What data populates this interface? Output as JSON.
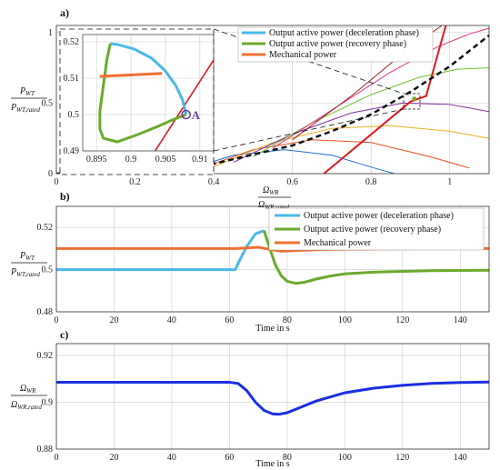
{
  "colors": {
    "decel": "#4ab8e8",
    "recovery": "#6aaa2a",
    "mech": "#f07030",
    "speed": "#1a2ee0",
    "red": "#e01818",
    "grid": "#cccccc"
  },
  "chart_data": [
    {
      "type": "line",
      "panel_label": "a)",
      "ylabel_main": "P",
      "ylabel_main_sub": "WT",
      "ylabel_den": "P",
      "ylabel_den_sub": "WT,rated",
      "xlabel_main": "Ω",
      "xlabel_main_sub": "WR",
      "xlabel_den": "Ω",
      "xlabel_den_sub": "WR,rated",
      "xlim": [
        0,
        1.1
      ],
      "ylim": [
        0,
        1.05
      ],
      "xticks": [
        "0",
        "0.2",
        "0.4",
        "0.6",
        "0.8",
        "1"
      ],
      "yticks": [
        "0",
        "0.5",
        "1"
      ],
      "legend": [
        "Output active power (deceleration phase)",
        "Output active power (recovery phase)",
        "Mechanical power"
      ],
      "inset": {
        "xlim": [
          0.893,
          0.912
        ],
        "ylim": [
          0.49,
          0.522
        ],
        "xticks": [
          "0.895",
          "0.9",
          "0.905",
          "0.91"
        ],
        "yticks": [
          "0.49",
          "0.5",
          "0.51",
          "0.52"
        ],
        "point_label": "A",
        "decel": [
          [
            0.908,
            0.5
          ],
          [
            0.9075,
            0.504
          ],
          [
            0.9065,
            0.508
          ],
          [
            0.905,
            0.512
          ],
          [
            0.903,
            0.5155
          ],
          [
            0.9005,
            0.518
          ],
          [
            0.898,
            0.5193
          ],
          [
            0.897,
            0.5195
          ]
        ],
        "recovery": [
          [
            0.897,
            0.5195
          ],
          [
            0.8965,
            0.515
          ],
          [
            0.896,
            0.508
          ],
          [
            0.8955,
            0.501
          ],
          [
            0.8955,
            0.496
          ],
          [
            0.896,
            0.4935
          ],
          [
            0.898,
            0.4925
          ],
          [
            0.901,
            0.4945
          ],
          [
            0.904,
            0.4968
          ],
          [
            0.906,
            0.4985
          ],
          [
            0.908,
            0.5
          ]
        ],
        "mech": [
          [
            0.8955,
            0.5105
          ],
          [
            0.9045,
            0.5113
          ]
        ],
        "red": [
          [
            0.9035,
            0.49
          ],
          [
            0.912,
            0.515
          ]
        ]
      },
      "power_curves": [
        {
          "color": "#1f6fd0",
          "points": [
            [
              0.3,
              0.0
            ],
            [
              0.45,
              0.13
            ],
            [
              0.58,
              0.17
            ],
            [
              0.7,
              0.13
            ],
            [
              0.82,
              0.03
            ],
            [
              0.86,
              0.0
            ]
          ]
        },
        {
          "color": "#e05020",
          "points": [
            [
              0.35,
              0.02
            ],
            [
              0.5,
              0.17
            ],
            [
              0.65,
              0.24
            ],
            [
              0.8,
              0.22
            ],
            [
              0.95,
              0.12
            ],
            [
              1.05,
              0.04
            ]
          ]
        },
        {
          "color": "#e8b020",
          "points": [
            [
              0.4,
              0.05
            ],
            [
              0.55,
              0.22
            ],
            [
              0.7,
              0.32
            ],
            [
              0.85,
              0.34
            ],
            [
              1.0,
              0.3
            ],
            [
              1.1,
              0.25
            ]
          ]
        },
        {
          "color": "#8030a0",
          "points": [
            [
              0.45,
              0.08
            ],
            [
              0.6,
              0.28
            ],
            [
              0.75,
              0.43
            ],
            [
              0.88,
              0.5
            ],
            [
              1.0,
              0.49
            ],
            [
              1.1,
              0.44
            ]
          ]
        },
        {
          "color": "#70c030",
          "points": [
            [
              0.5,
              0.12
            ],
            [
              0.65,
              0.36
            ],
            [
              0.8,
              0.56
            ],
            [
              0.92,
              0.68
            ],
            [
              1.02,
              0.74
            ],
            [
              1.1,
              0.75
            ]
          ]
        },
        {
          "color": "#e8308a",
          "points": [
            [
              0.55,
              0.18
            ],
            [
              0.7,
              0.45
            ],
            [
              0.85,
              0.72
            ],
            [
              0.97,
              0.9
            ],
            [
              1.05,
              0.99
            ],
            [
              1.1,
              1.03
            ]
          ]
        },
        {
          "color": "#a02020",
          "points": [
            [
              0.6,
              0.24
            ],
            [
              0.75,
              0.55
            ],
            [
              0.88,
              0.85
            ],
            [
              0.98,
              1.05
            ]
          ]
        }
      ],
      "mpp_curve": [
        [
          0,
          0
        ],
        [
          0.2,
          0.01
        ],
        [
          0.4,
          0.07
        ],
        [
          0.6,
          0.2
        ],
        [
          0.7,
          0.3
        ],
        [
          0.8,
          0.42
        ],
        [
          0.9,
          0.58
        ],
        [
          1.0,
          0.76
        ],
        [
          1.1,
          0.98
        ]
      ],
      "red_line": [
        [
          0.68,
          0.0
        ],
        [
          0.9,
          0.51
        ],
        [
          0.94,
          0.55
        ],
        [
          0.99,
          1.05
        ]
      ],
      "point_A": [
        0.91,
        0.53
      ]
    },
    {
      "type": "line",
      "panel_label": "b)",
      "ylabel_main": "P",
      "ylabel_main_sub": "WT",
      "ylabel_den": "P",
      "ylabel_den_sub": "WT,rated",
      "xlabel": "Time in s",
      "xlim": [
        0,
        150
      ],
      "ylim": [
        0.48,
        0.53
      ],
      "xticks": [
        "0",
        "20",
        "40",
        "60",
        "80",
        "100",
        "120",
        "140"
      ],
      "yticks": [
        "0.48",
        "0.5",
        "0.52"
      ],
      "legend": [
        "Output active power (deceleration phase)",
        "Output active power (recovery phase)",
        "Mechanical power"
      ],
      "series": [
        {
          "name": "Output active power (deceleration phase)",
          "color": "#4ab8e8",
          "x": [
            0,
            62,
            63,
            66,
            69,
            71,
            72
          ],
          "values": [
            0.5,
            0.5,
            0.503,
            0.511,
            0.517,
            0.518,
            0.5185
          ]
        },
        {
          "name": "Output active power (recovery phase)",
          "color": "#6aaa2a",
          "x": [
            72,
            74,
            76,
            78,
            80,
            83,
            86,
            90,
            95,
            100,
            110,
            120,
            130,
            140,
            150
          ],
          "values": [
            0.5185,
            0.51,
            0.502,
            0.497,
            0.4945,
            0.4935,
            0.494,
            0.4955,
            0.497,
            0.498,
            0.4988,
            0.4992,
            0.4995,
            0.4996,
            0.4997
          ]
        },
        {
          "name": "Mechanical power",
          "color": "#f07030",
          "x": [
            0,
            62,
            66,
            70,
            74,
            78,
            82,
            90,
            100,
            120,
            150
          ],
          "values": [
            0.51,
            0.51,
            0.5103,
            0.5106,
            0.5096,
            0.5087,
            0.509,
            0.5094,
            0.5097,
            0.5099,
            0.51
          ]
        }
      ]
    },
    {
      "type": "line",
      "panel_label": "c)",
      "ylabel_main": "Ω",
      "ylabel_main_sub": "WR",
      "ylabel_den": "Ω",
      "ylabel_den_sub": "WR,rated",
      "xlabel": "Time in s",
      "xlim": [
        0,
        150
      ],
      "ylim": [
        0.88,
        0.925
      ],
      "xticks": [
        "0",
        "20",
        "40",
        "60",
        "80",
        "100",
        "120",
        "140"
      ],
      "yticks": [
        "0.88",
        "0.9",
        "0.92"
      ],
      "series": [
        {
          "color": "#1a2ee0",
          "x": [
            0,
            60,
            63,
            66,
            69,
            72,
            75,
            77,
            80,
            85,
            90,
            100,
            110,
            120,
            130,
            140,
            150
          ],
          "values": [
            0.9085,
            0.9085,
            0.908,
            0.905,
            0.9,
            0.8965,
            0.895,
            0.8948,
            0.8955,
            0.898,
            0.9005,
            0.904,
            0.906,
            0.9072,
            0.908,
            0.9084,
            0.9086
          ]
        }
      ]
    }
  ]
}
